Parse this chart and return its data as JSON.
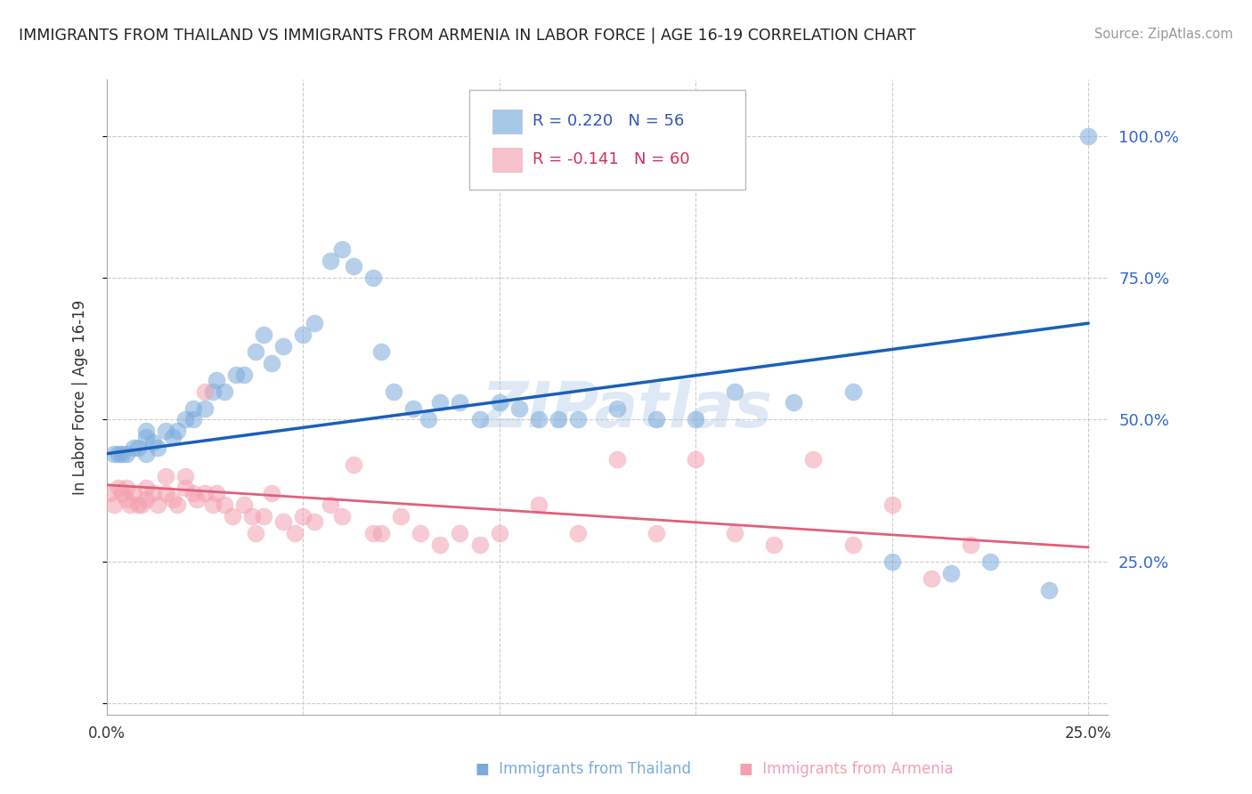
{
  "title": "IMMIGRANTS FROM THAILAND VS IMMIGRANTS FROM ARMENIA IN LABOR FORCE | AGE 16-19 CORRELATION CHART",
  "source": "Source: ZipAtlas.com",
  "ylabel": "In Labor Force | Age 16-19",
  "thailand_color": "#7aabdc",
  "armenia_color": "#f4a0b0",
  "thailand_line_color": "#1a5fba",
  "armenia_line_color": "#e0607a",
  "thailand_R": 0.22,
  "thailand_N": 56,
  "armenia_R": -0.141,
  "armenia_N": 60,
  "background_color": "#ffffff",
  "grid_color": "#cccccc",
  "watermark": "ZIPatlas",
  "xlim": [
    0.0,
    0.255
  ],
  "ylim": [
    -0.02,
    1.1
  ],
  "thailand_scatter_x": [
    0.002,
    0.003,
    0.004,
    0.005,
    0.007,
    0.008,
    0.01,
    0.01,
    0.01,
    0.012,
    0.013,
    0.015,
    0.017,
    0.018,
    0.02,
    0.022,
    0.022,
    0.025,
    0.027,
    0.028,
    0.03,
    0.033,
    0.035,
    0.038,
    0.04,
    0.042,
    0.045,
    0.05,
    0.053,
    0.057,
    0.06,
    0.063,
    0.068,
    0.07,
    0.073,
    0.078,
    0.082,
    0.085,
    0.09,
    0.095,
    0.1,
    0.105,
    0.11,
    0.115,
    0.12,
    0.13,
    0.14,
    0.15,
    0.16,
    0.175,
    0.19,
    0.2,
    0.215,
    0.225,
    0.24,
    0.25
  ],
  "thailand_scatter_y": [
    0.44,
    0.44,
    0.44,
    0.44,
    0.45,
    0.45,
    0.44,
    0.47,
    0.48,
    0.46,
    0.45,
    0.48,
    0.47,
    0.48,
    0.5,
    0.52,
    0.5,
    0.52,
    0.55,
    0.57,
    0.55,
    0.58,
    0.58,
    0.62,
    0.65,
    0.6,
    0.63,
    0.65,
    0.67,
    0.78,
    0.8,
    0.77,
    0.75,
    0.62,
    0.55,
    0.52,
    0.5,
    0.53,
    0.53,
    0.5,
    0.53,
    0.52,
    0.5,
    0.5,
    0.5,
    0.52,
    0.5,
    0.5,
    0.55,
    0.53,
    0.55,
    0.25,
    0.23,
    0.25,
    0.2,
    1.0
  ],
  "armenia_scatter_x": [
    0.001,
    0.002,
    0.003,
    0.004,
    0.005,
    0.005,
    0.006,
    0.007,
    0.008,
    0.009,
    0.01,
    0.01,
    0.012,
    0.013,
    0.015,
    0.015,
    0.017,
    0.018,
    0.02,
    0.02,
    0.022,
    0.023,
    0.025,
    0.027,
    0.028,
    0.03,
    0.032,
    0.035,
    0.037,
    0.038,
    0.04,
    0.042,
    0.045,
    0.048,
    0.05,
    0.053,
    0.057,
    0.06,
    0.063,
    0.068,
    0.07,
    0.075,
    0.08,
    0.085,
    0.09,
    0.095,
    0.1,
    0.11,
    0.12,
    0.13,
    0.14,
    0.15,
    0.16,
    0.17,
    0.18,
    0.19,
    0.2,
    0.21,
    0.22,
    0.025
  ],
  "armenia_scatter_y": [
    0.37,
    0.35,
    0.38,
    0.37,
    0.38,
    0.36,
    0.35,
    0.37,
    0.35,
    0.35,
    0.38,
    0.36,
    0.37,
    0.35,
    0.4,
    0.37,
    0.36,
    0.35,
    0.4,
    0.38,
    0.37,
    0.36,
    0.37,
    0.35,
    0.37,
    0.35,
    0.33,
    0.35,
    0.33,
    0.3,
    0.33,
    0.37,
    0.32,
    0.3,
    0.33,
    0.32,
    0.35,
    0.33,
    0.42,
    0.3,
    0.3,
    0.33,
    0.3,
    0.28,
    0.3,
    0.28,
    0.3,
    0.35,
    0.3,
    0.43,
    0.3,
    0.43,
    0.3,
    0.28,
    0.43,
    0.28,
    0.35,
    0.22,
    0.28,
    0.55
  ],
  "blue_trend_x": [
    0.0,
    0.25
  ],
  "blue_trend_y": [
    0.44,
    0.67
  ],
  "pink_trend_x": [
    0.0,
    0.25
  ],
  "pink_trend_y": [
    0.385,
    0.275
  ]
}
